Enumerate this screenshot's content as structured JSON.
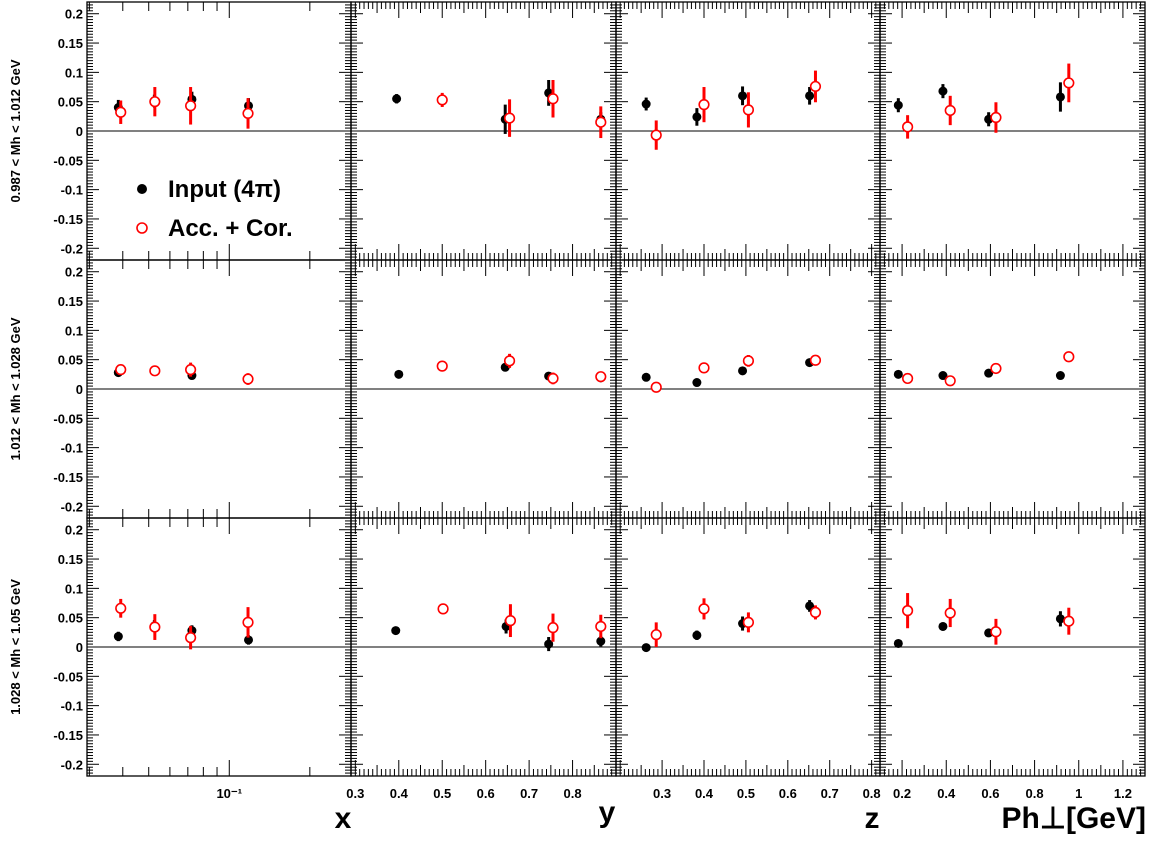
{
  "chart_data": {
    "type": "scatter",
    "layout": "grid 3 rows x 4 columns",
    "legend": {
      "placement": "inside top-left panel",
      "entries": [
        {
          "label": "Input (4π)",
          "marker": "filled-circle",
          "color": "#000000"
        },
        {
          "label": "Acc. + Cor.",
          "marker": "open-circle",
          "color": "#ff0000"
        }
      ]
    },
    "y_axis": {
      "range": [
        -0.22,
        0.22
      ],
      "ticks": [
        -0.2,
        -0.15,
        -0.1,
        -0.05,
        0,
        0.05,
        0.1,
        0.15,
        0.2
      ],
      "tick_labels": [
        "-0.2",
        "-0.15",
        "-0.1",
        "-0.05",
        "0",
        "0.05",
        "0.1",
        "0.15",
        "0.2"
      ],
      "zero_line": true
    },
    "columns": [
      {
        "id": "x",
        "xlabel": "x",
        "scale": "log",
        "range": [
          0.0294,
          0.285
        ],
        "ticks": [
          0.1
        ],
        "tick_labels": [
          "10⁻¹"
        ]
      },
      {
        "id": "y",
        "xlabel": "y",
        "scale": "linear",
        "range": [
          0.29,
          0.9
        ],
        "ticks": [
          0.3,
          0.4,
          0.5,
          0.6,
          0.7,
          0.8
        ],
        "tick_labels": [
          "0.3",
          "0.4",
          "0.5",
          "0.6",
          "0.7",
          "0.8"
        ]
      },
      {
        "id": "z",
        "xlabel": "z",
        "scale": "linear",
        "range": [
          0.19,
          0.82
        ],
        "ticks": [
          0.3,
          0.4,
          0.5,
          0.6,
          0.7,
          0.8
        ],
        "tick_labels": [
          "0.3",
          "0.4",
          "0.5",
          "0.6",
          "0.7",
          "0.8"
        ]
      },
      {
        "id": "pt",
        "xlabel": "Ph⊥[GeV]",
        "scale": "linear",
        "range": [
          0.1,
          1.3
        ],
        "ticks": [
          0.2,
          0.4,
          0.6,
          0.8,
          1.0,
          1.2
        ],
        "tick_labels": [
          "0.2",
          "0.4",
          "0.6",
          "0.8",
          "1",
          "1.2"
        ]
      }
    ],
    "rows": [
      {
        "label": "0.987 < Mh < 1.012 GeV",
        "panels": [
          {
            "input": [
              [
                0.0385,
                0.04,
                0.013
              ],
              [
                0.0525,
                0.051,
                0.011
              ],
              [
                0.0725,
                0.054,
                0.013
              ],
              [
                0.118,
                0.043,
                0.013
              ]
            ],
            "acc": [
              [
                0.0393,
                0.032,
                0.02
              ],
              [
                0.0527,
                0.05,
                0.025
              ],
              [
                0.0717,
                0.043,
                0.032
              ],
              [
                0.1175,
                0.03,
                0.026
              ]
            ]
          },
          {
            "input": [
              [
                0.395,
                0.055,
                0.008
              ],
              [
                0.645,
                0.02,
                0.025
              ],
              [
                0.745,
                0.065,
                0.022
              ],
              [
                0.865,
                0.02,
                0.012
              ]
            ],
            "acc": [
              [
                0.5,
                0.053,
                0.012
              ],
              [
                0.655,
                0.022,
                0.032
              ],
              [
                0.755,
                0.055,
                0.032
              ],
              [
                0.865,
                0.015,
                0.027
              ]
            ]
          },
          {
            "input": [
              [
                0.262,
                0.046,
                0.011
              ],
              [
                0.383,
                0.024,
                0.015
              ],
              [
                0.492,
                0.06,
                0.016
              ],
              [
                0.652,
                0.06,
                0.015
              ]
            ],
            "acc": [
              [
                0.286,
                -0.007,
                0.025
              ],
              [
                0.4,
                0.045,
                0.03
              ],
              [
                0.506,
                0.036,
                0.03
              ],
              [
                0.666,
                0.076,
                0.027
              ]
            ]
          },
          {
            "input": [
              [
                0.183,
                0.044,
                0.012
              ],
              [
                0.385,
                0.068,
                0.012
              ],
              [
                0.592,
                0.02,
                0.012
              ],
              [
                0.917,
                0.058,
                0.025
              ]
            ],
            "acc": [
              [
                0.225,
                0.007,
                0.02
              ],
              [
                0.418,
                0.035,
                0.025
              ],
              [
                0.625,
                0.023,
                0.026
              ],
              [
                0.955,
                0.082,
                0.033
              ]
            ]
          }
        ]
      },
      {
        "label": "1.012 < Mh < 1.028 GeV",
        "panels": [
          {
            "input": [
              [
                0.0385,
                0.028,
                0.005
              ],
              [
                0.0525,
                0.03,
                0.005
              ],
              [
                0.0725,
                0.023,
                0.005
              ],
              [
                0.118,
                0.016,
                0.005
              ]
            ],
            "acc": [
              [
                0.0393,
                0.033,
                0.007
              ],
              [
                0.0527,
                0.031,
                0.007
              ],
              [
                0.0717,
                0.033,
                0.012
              ],
              [
                0.1175,
                0.017,
                0.01
              ]
            ]
          },
          {
            "input": [
              [
                0.4,
                0.025,
                0.004
              ],
              [
                0.645,
                0.037,
                0.005
              ],
              [
                0.745,
                0.022,
                0.005
              ],
              [
                0.865,
                0.019,
                0.005
              ]
            ],
            "acc": [
              [
                0.5,
                0.039,
                0.005
              ],
              [
                0.655,
                0.048,
                0.012
              ],
              [
                0.755,
                0.018,
                0.01
              ],
              [
                0.865,
                0.021,
                0.008
              ]
            ]
          },
          {
            "input": [
              [
                0.262,
                0.02,
                0.003
              ],
              [
                0.383,
                0.011,
                0.003
              ],
              [
                0.492,
                0.031,
                0.004
              ],
              [
                0.652,
                0.045,
                0.005
              ]
            ],
            "acc": [
              [
                0.286,
                0.003,
                0.006
              ],
              [
                0.4,
                0.036,
                0.008
              ],
              [
                0.506,
                0.048,
                0.01
              ],
              [
                0.666,
                0.049,
                0.006
              ]
            ]
          },
          {
            "input": [
              [
                0.183,
                0.025,
                0.004
              ],
              [
                0.385,
                0.023,
                0.004
              ],
              [
                0.592,
                0.027,
                0.004
              ],
              [
                0.917,
                0.023,
                0.005
              ]
            ],
            "acc": [
              [
                0.225,
                0.018,
                0.006
              ],
              [
                0.418,
                0.014,
                0.006
              ],
              [
                0.625,
                0.035,
                0.007
              ],
              [
                0.955,
                0.055,
                0.009
              ]
            ]
          }
        ]
      },
      {
        "label": "1.028 < Mh < 1.05 GeV",
        "panels": [
          {
            "input": [
              [
                0.0385,
                0.018,
                0.008
              ],
              [
                0.0525,
                0.036,
                0.01
              ],
              [
                0.0725,
                0.028,
                0.009
              ],
              [
                0.118,
                0.012,
                0.008
              ]
            ],
            "acc": [
              [
                0.0393,
                0.066,
                0.016
              ],
              [
                0.0527,
                0.034,
                0.022
              ],
              [
                0.0717,
                0.016,
                0.02
              ],
              [
                0.1175,
                0.042,
                0.026
              ]
            ]
          },
          {
            "input": [
              [
                0.393,
                0.028,
                0.005
              ],
              [
                0.647,
                0.035,
                0.012
              ],
              [
                0.745,
                0.005,
                0.012
              ],
              [
                0.865,
                0.01,
                0.009
              ]
            ],
            "acc": [
              [
                0.502,
                0.065,
                0.009
              ],
              [
                0.657,
                0.045,
                0.028
              ],
              [
                0.755,
                0.033,
                0.024
              ],
              [
                0.865,
                0.035,
                0.02
              ]
            ]
          },
          {
            "input": [
              [
                0.262,
                -0.001,
                0.004
              ],
              [
                0.383,
                0.02,
                0.008
              ],
              [
                0.492,
                0.04,
                0.012
              ],
              [
                0.652,
                0.07,
                0.01
              ]
            ],
            "acc": [
              [
                0.286,
                0.021,
                0.021
              ],
              [
                0.4,
                0.065,
                0.018
              ],
              [
                0.506,
                0.042,
                0.017
              ],
              [
                0.666,
                0.059,
                0.012
              ]
            ]
          },
          {
            "input": [
              [
                0.183,
                0.006,
                0.004
              ],
              [
                0.385,
                0.035,
                0.007
              ],
              [
                0.592,
                0.024,
                0.007
              ],
              [
                0.917,
                0.048,
                0.013
              ]
            ],
            "acc": [
              [
                0.225,
                0.062,
                0.03
              ],
              [
                0.418,
                0.058,
                0.024
              ],
              [
                0.625,
                0.026,
                0.022
              ],
              [
                0.955,
                0.044,
                0.023
              ]
            ]
          }
        ]
      }
    ]
  }
}
